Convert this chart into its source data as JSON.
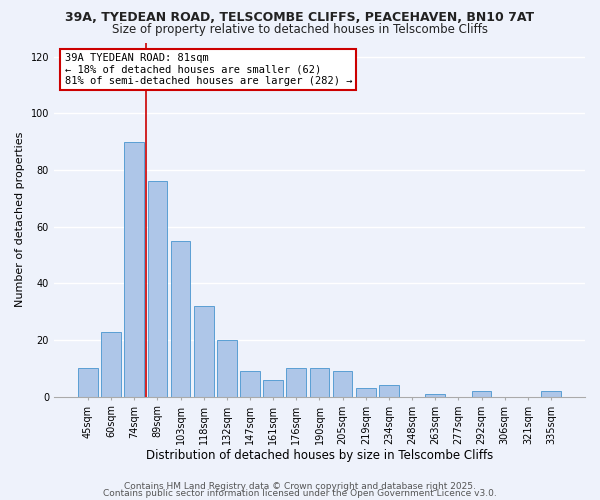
{
  "title1": "39A, TYEDEAN ROAD, TELSCOMBE CLIFFS, PEACEHAVEN, BN10 7AT",
  "title2": "Size of property relative to detached houses in Telscombe Cliffs",
  "xlabel": "Distribution of detached houses by size in Telscombe Cliffs",
  "ylabel": "Number of detached properties",
  "categories": [
    "45sqm",
    "60sqm",
    "74sqm",
    "89sqm",
    "103sqm",
    "118sqm",
    "132sqm",
    "147sqm",
    "161sqm",
    "176sqm",
    "190sqm",
    "205sqm",
    "219sqm",
    "234sqm",
    "248sqm",
    "263sqm",
    "277sqm",
    "292sqm",
    "306sqm",
    "321sqm",
    "335sqm"
  ],
  "values": [
    10,
    23,
    90,
    76,
    55,
    32,
    20,
    9,
    6,
    10,
    10,
    9,
    3,
    4,
    0,
    1,
    0,
    2,
    0,
    0,
    2
  ],
  "bar_color": "#aec6e8",
  "bar_edge_color": "#5a9fd4",
  "vline_x": 2.5,
  "vline_color": "#cc0000",
  "annotation_lines": [
    "39A TYEDEAN ROAD: 81sqm",
    "← 18% of detached houses are smaller (62)",
    "81% of semi-detached houses are larger (282) →"
  ],
  "annotation_box_color": "#ffffff",
  "annotation_box_edge_color": "#cc0000",
  "ylim": [
    0,
    125
  ],
  "yticks": [
    0,
    20,
    40,
    60,
    80,
    100,
    120
  ],
  "background_color": "#eef2fb",
  "footer1": "Contains HM Land Registry data © Crown copyright and database right 2025.",
  "footer2": "Contains public sector information licensed under the Open Government Licence v3.0.",
  "title1_fontsize": 9,
  "title2_fontsize": 8.5,
  "xlabel_fontsize": 8.5,
  "ylabel_fontsize": 8,
  "tick_fontsize": 7,
  "annotation_fontsize": 7.5,
  "footer_fontsize": 6.5
}
